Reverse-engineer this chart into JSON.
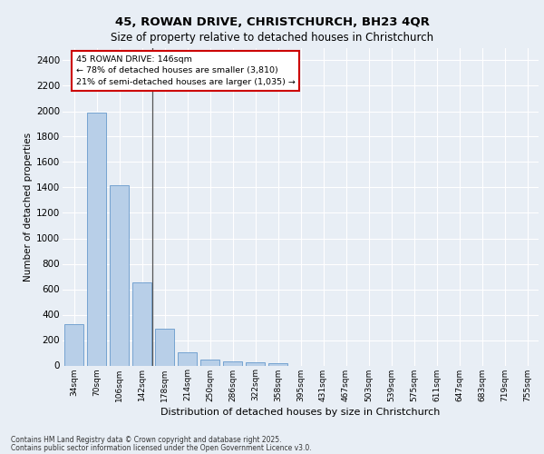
{
  "title1": "45, ROWAN DRIVE, CHRISTCHURCH, BH23 4QR",
  "title2": "Size of property relative to detached houses in Christchurch",
  "xlabel": "Distribution of detached houses by size in Christchurch",
  "ylabel": "Number of detached properties",
  "categories": [
    "34sqm",
    "70sqm",
    "106sqm",
    "142sqm",
    "178sqm",
    "214sqm",
    "250sqm",
    "286sqm",
    "322sqm",
    "358sqm",
    "395sqm",
    "431sqm",
    "467sqm",
    "503sqm",
    "539sqm",
    "575sqm",
    "611sqm",
    "647sqm",
    "683sqm",
    "719sqm",
    "755sqm"
  ],
  "values": [
    325,
    1990,
    1420,
    655,
    290,
    105,
    48,
    35,
    25,
    18,
    0,
    0,
    0,
    0,
    0,
    0,
    0,
    0,
    0,
    0,
    0
  ],
  "bar_color": "#b8cfe8",
  "bar_edge_color": "#6699cc",
  "annotation_text": "45 ROWAN DRIVE: 146sqm\n← 78% of detached houses are smaller (3,810)\n21% of semi-detached houses are larger (1,035) →",
  "annotation_box_color": "#ffffff",
  "annotation_box_edge": "#cc0000",
  "vline_color": "#555555",
  "ylim": [
    0,
    2500
  ],
  "yticks": [
    0,
    200,
    400,
    600,
    800,
    1000,
    1200,
    1400,
    1600,
    1800,
    2000,
    2200,
    2400
  ],
  "bg_color": "#e8eef5",
  "plot_bg_color": "#e8eef5",
  "grid_color": "#ffffff",
  "footer1": "Contains HM Land Registry data © Crown copyright and database right 2025.",
  "footer2": "Contains public sector information licensed under the Open Government Licence v3.0."
}
